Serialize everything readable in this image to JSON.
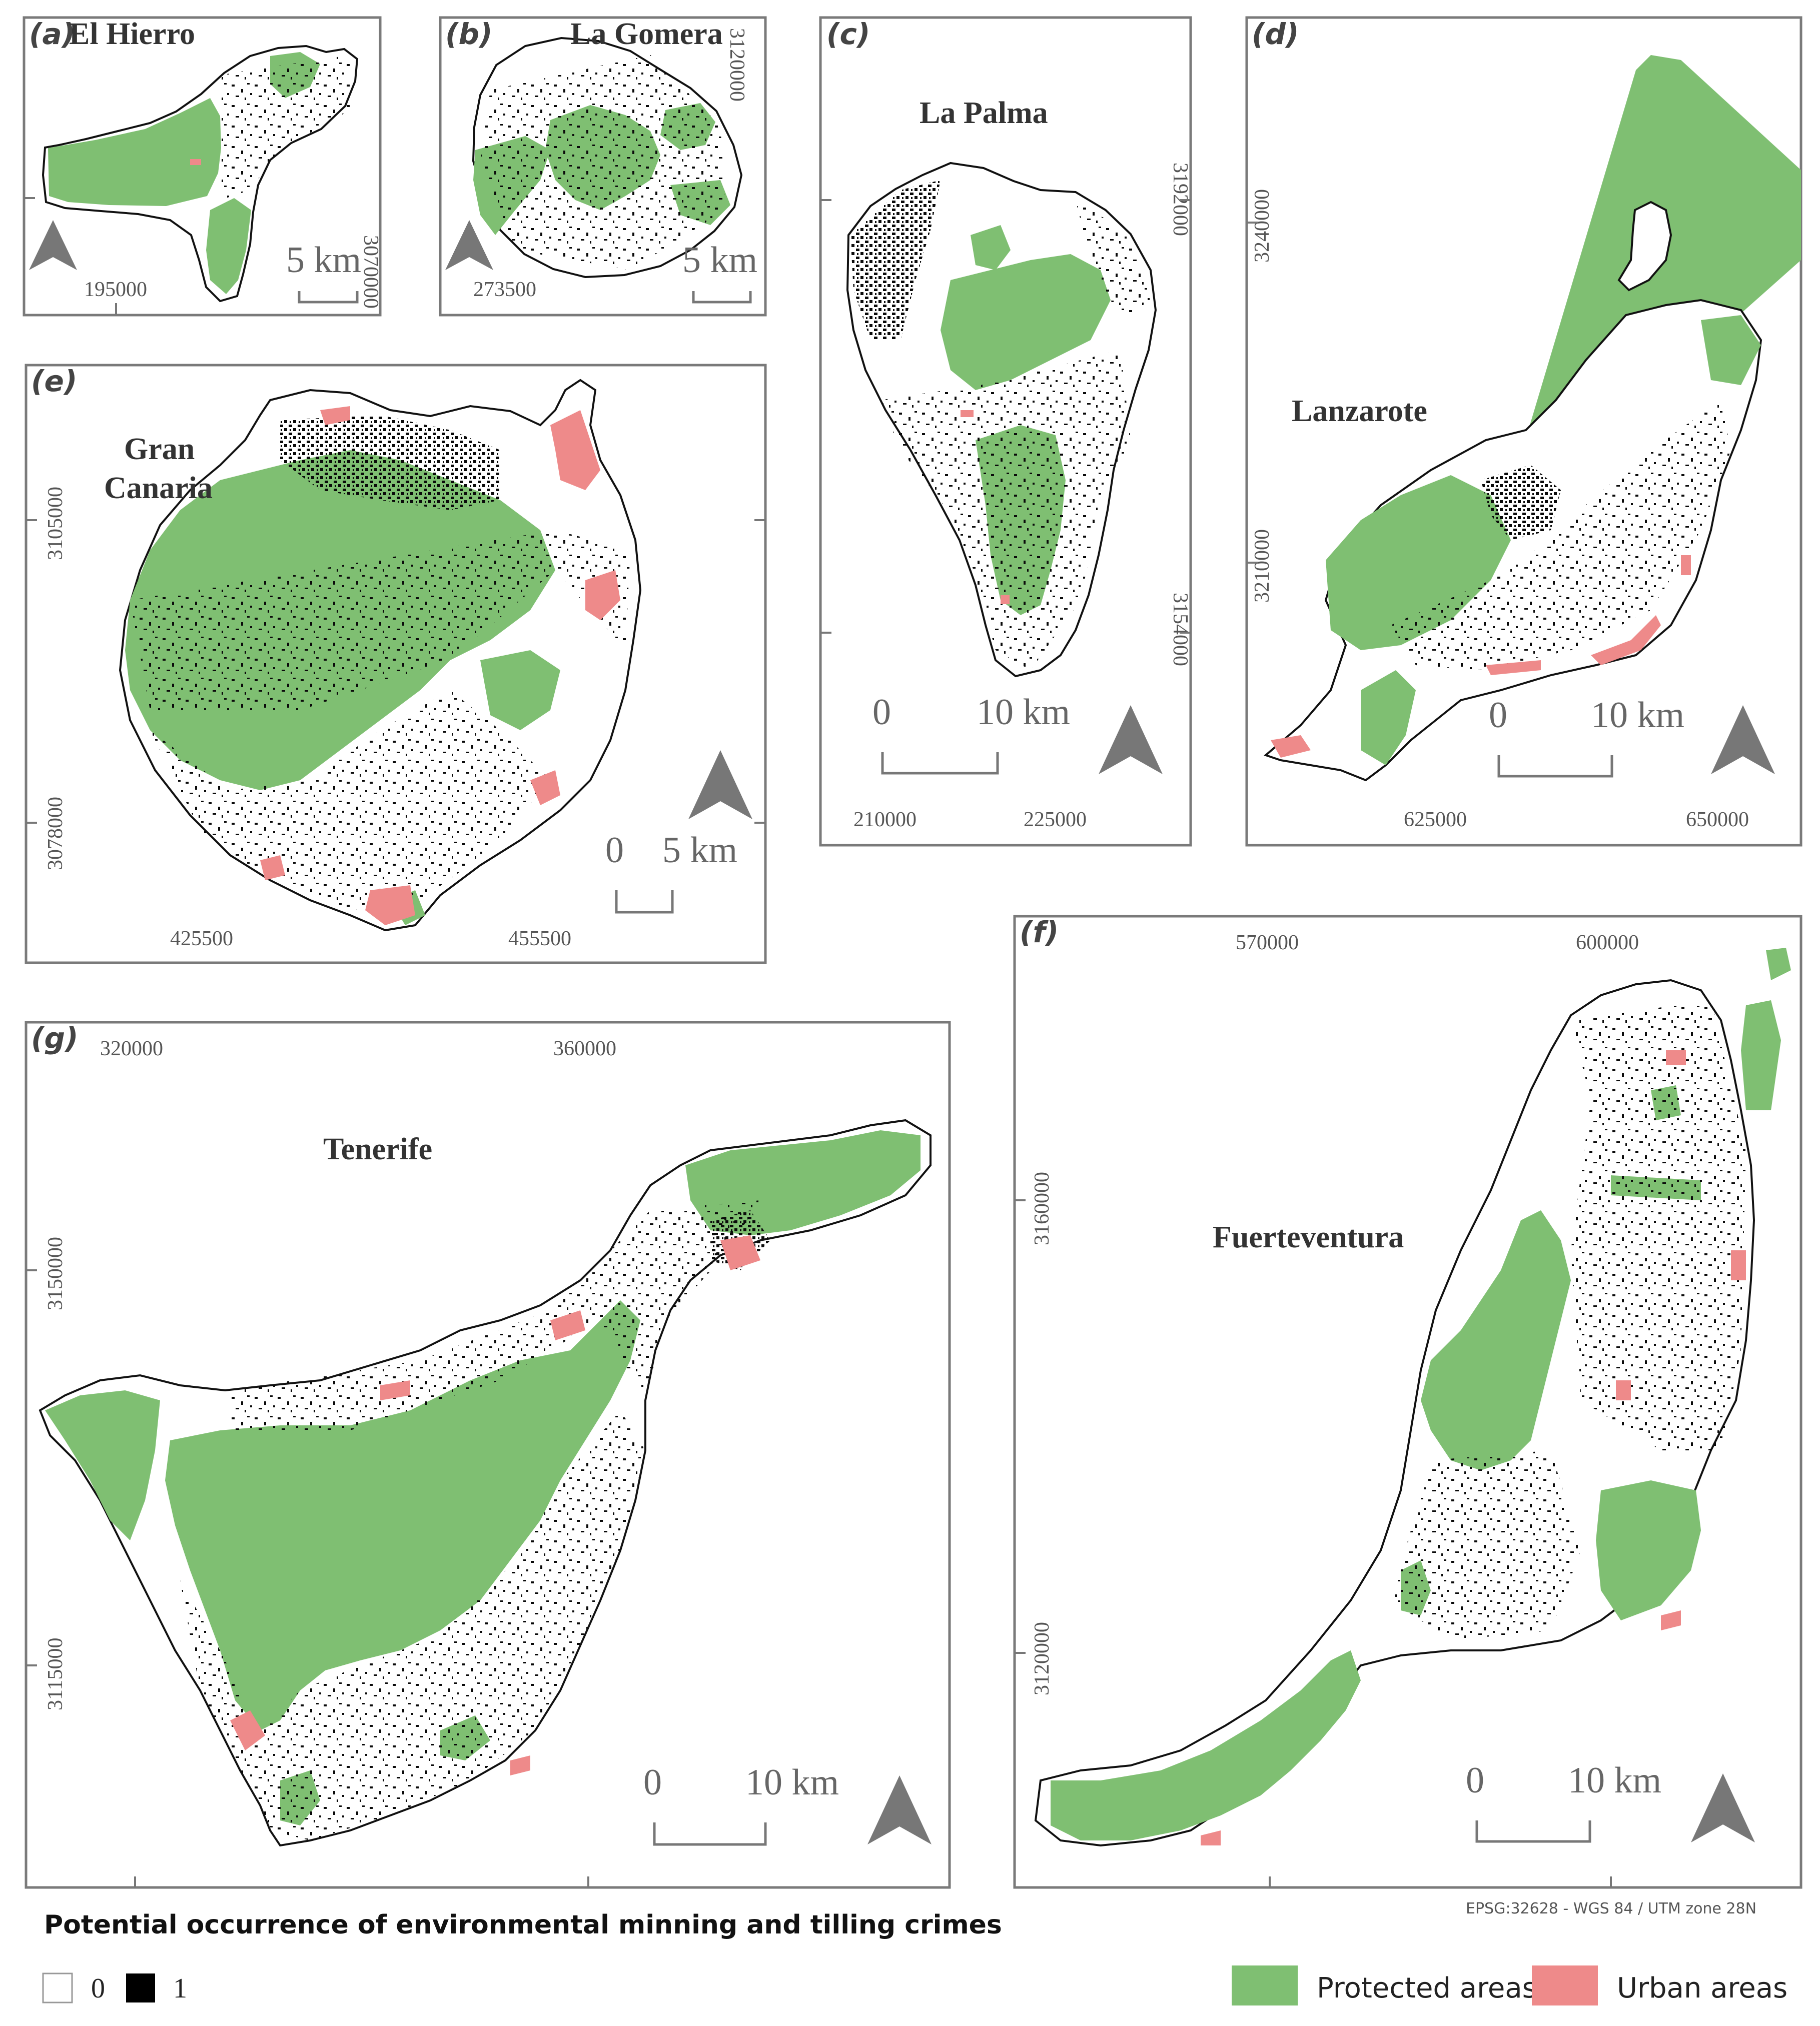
{
  "panels": {
    "a": {
      "letter": "(a)",
      "name": "El Hierro",
      "x_coord": "195000",
      "y_coord": "3070000",
      "scale": "5 km"
    },
    "b": {
      "letter": "(b)",
      "name": "La Gomera",
      "x_coord": "273500",
      "y_coord": "3120000",
      "scale": "5 km"
    },
    "c": {
      "letter": "(c)",
      "name": "La Palma",
      "x_coords": [
        "210000",
        "225000"
      ],
      "y_coords": [
        "3192000",
        "3154000"
      ],
      "scale_zero": "0",
      "scale": "10 km"
    },
    "d": {
      "letter": "(d)",
      "name": "Lanzarote",
      "x_coords": [
        "625000",
        "650000"
      ],
      "y_coords": [
        "3240000",
        "3210000"
      ],
      "scale_zero": "0",
      "scale": "10 km"
    },
    "e": {
      "letter": "(e)",
      "name_line1": "Gran",
      "name_line2": "Canaria",
      "x_coords": [
        "425500",
        "455500"
      ],
      "y_coords": [
        "3105000",
        "3078000"
      ],
      "scale_zero": "0",
      "scale": "5 km"
    },
    "f": {
      "letter": "(f)",
      "name": "Fuerteventura",
      "x_coords": [
        "570000",
        "600000"
      ],
      "y_coords": [
        "3160000",
        "3120000"
      ],
      "scale_zero": "0",
      "scale": "10 km"
    },
    "g": {
      "letter": "(g)",
      "name": "Tenerife",
      "x_coords": [
        "320000",
        "360000"
      ],
      "y_coords": [
        "3150000",
        "3115000"
      ],
      "scale_zero": "0",
      "scale": "10 km"
    }
  },
  "legend": {
    "title": "Potential occurrence of environmental minning and tilling crimes",
    "class_0": "0",
    "class_1": "1",
    "protected": "Protected areas",
    "urban": "Urban areas",
    "colors": {
      "protected": "#7fbf72",
      "urban": "#ee8a8a",
      "class_1": "#000000",
      "class_0": "#ffffff"
    }
  },
  "crs": "EPSG:32628 - WGS 84 / UTM zone 28N"
}
